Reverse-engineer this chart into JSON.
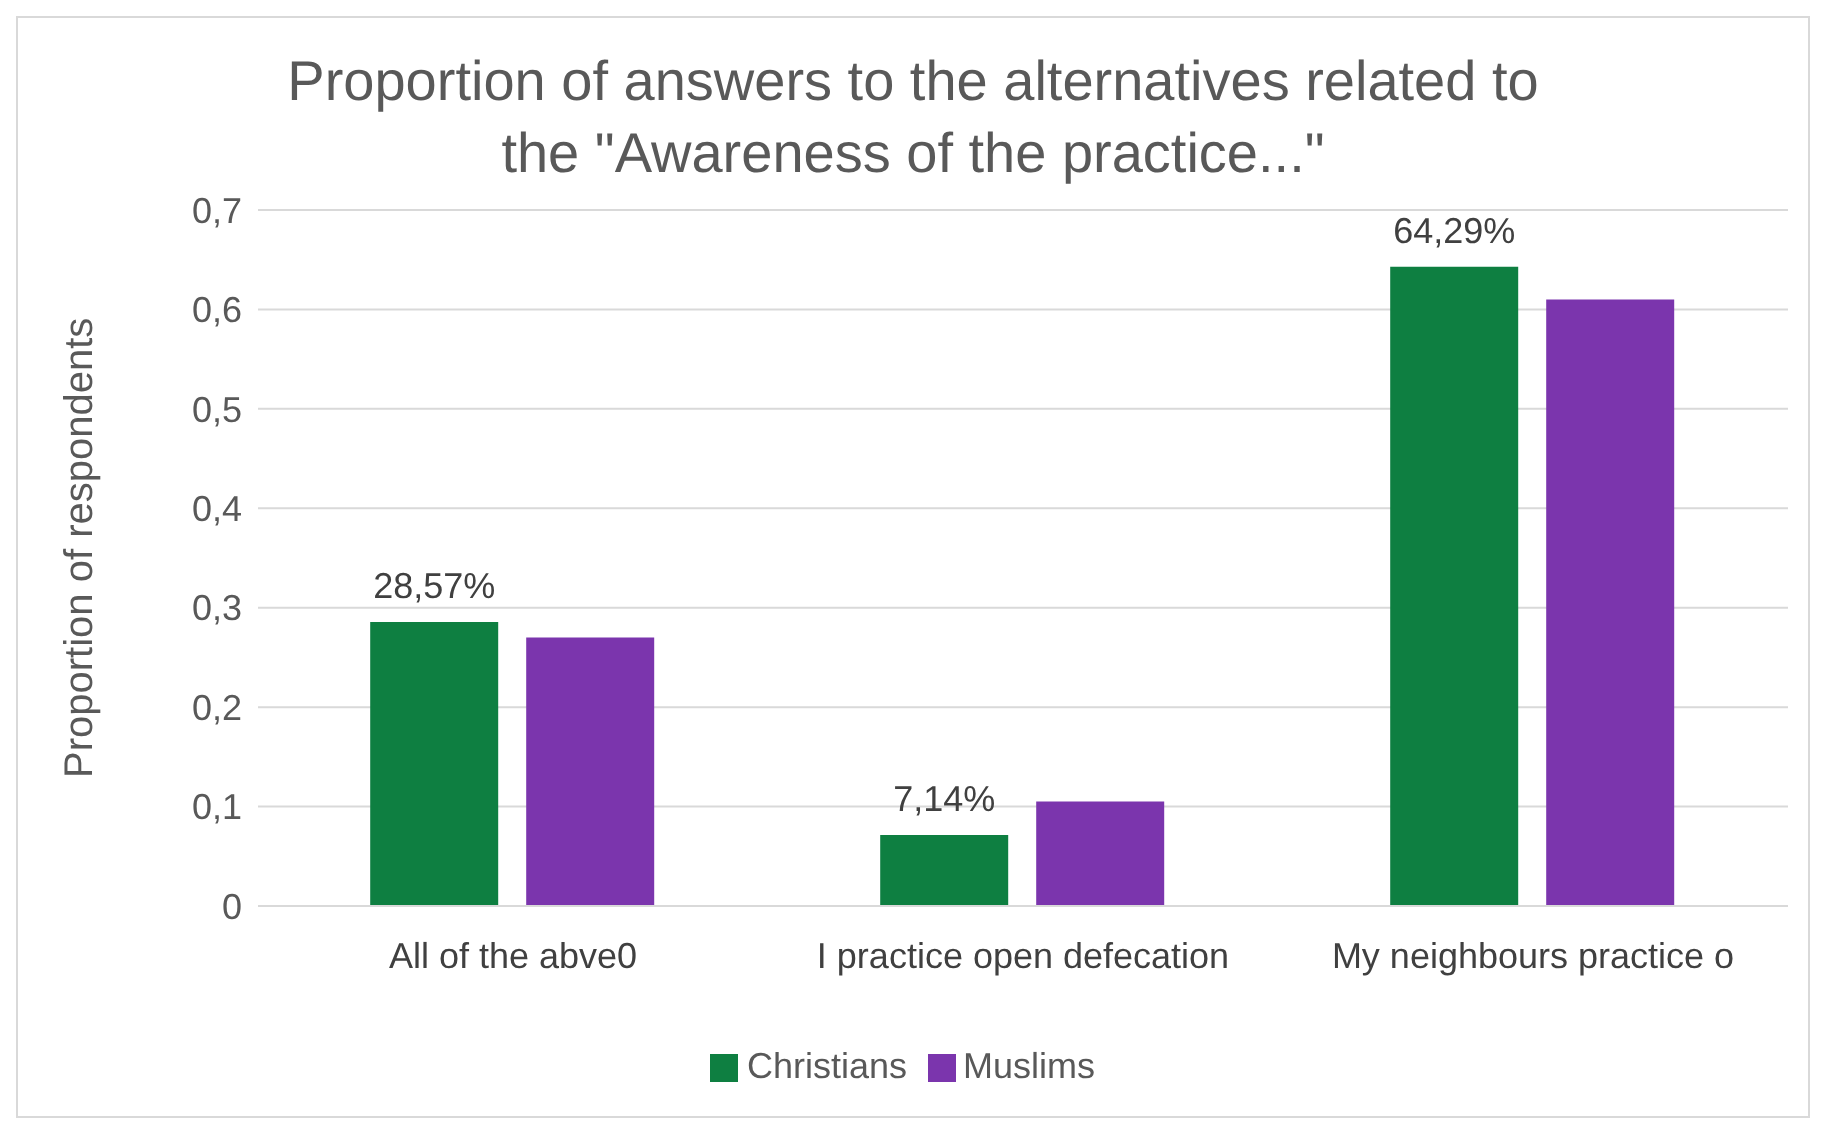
{
  "chart_data": {
    "type": "bar",
    "title": "Proportion of answers to the alternatives related to the \"Awareness of the practice...\"",
    "ylabel": "Proportion of respondents",
    "categories": [
      "All of the abve0",
      "I practice open defecation",
      "My neighbours practice o"
    ],
    "series": [
      {
        "name": "Christians",
        "color": "#0e7f41",
        "values": [
          0.2857,
          0.0714,
          0.6429
        ],
        "value_labels": [
          "28,57%",
          "7,14%",
          "64,29%"
        ]
      },
      {
        "name": "Muslims",
        "color": "#7b35ad",
        "values": [
          0.27,
          0.105,
          0.61
        ]
      }
    ],
    "ylim": [
      0,
      0.7
    ],
    "yticks": [
      0,
      {
        "value": 0.1,
        "label": "0,1"
      },
      {
        "value": 0.2,
        "label": "0,2"
      },
      {
        "value": 0.3,
        "label": "0,3"
      },
      {
        "value": 0.4,
        "label": "0,4"
      },
      {
        "value": 0.5,
        "label": "0,5"
      },
      {
        "value": 0.6,
        "label": "0,6"
      },
      {
        "value": 0.7,
        "label": "0,7"
      }
    ],
    "grid": "y",
    "legend": "bottom"
  }
}
